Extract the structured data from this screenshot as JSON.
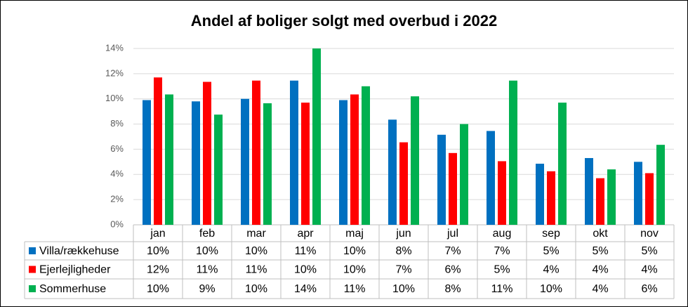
{
  "chart_data": {
    "type": "bar",
    "title": "Andel af boliger solgt med overbud i 2022",
    "categories": [
      "jan",
      "feb",
      "mar",
      "apr",
      "maj",
      "jun",
      "jul",
      "aug",
      "sep",
      "okt",
      "nov"
    ],
    "series": [
      {
        "name": "Villa/rækkehuse",
        "color": "#0070c0",
        "values": [
          9.9,
          9.8,
          10.0,
          11.45,
          9.9,
          8.35,
          7.15,
          7.45,
          4.85,
          5.3,
          5.0
        ],
        "value_labels": [
          "10%",
          "10%",
          "10%",
          "11%",
          "10%",
          "8%",
          "7%",
          "7%",
          "5%",
          "5%",
          "5%"
        ]
      },
      {
        "name": "Ejerlejligheder",
        "color": "#ff0000",
        "values": [
          11.7,
          11.35,
          11.45,
          9.7,
          10.35,
          6.55,
          5.7,
          5.05,
          4.25,
          3.7,
          4.1
        ],
        "value_labels": [
          "12%",
          "11%",
          "11%",
          "10%",
          "10%",
          "7%",
          "6%",
          "5%",
          "4%",
          "4%",
          "4%"
        ]
      },
      {
        "name": "Sommerhuse",
        "color": "#00b050",
        "values": [
          10.35,
          8.75,
          9.65,
          14.0,
          11.0,
          10.2,
          8.0,
          11.45,
          9.7,
          4.4,
          6.35
        ],
        "value_labels": [
          "10%",
          "9%",
          "10%",
          "14%",
          "11%",
          "10%",
          "8%",
          "11%",
          "10%",
          "4%",
          "6%"
        ]
      }
    ],
    "ylim": [
      0,
      14
    ],
    "yticks": [
      {
        "value": 0,
        "label": "0%"
      },
      {
        "value": 2,
        "label": "2%"
      },
      {
        "value": 4,
        "label": "4%"
      },
      {
        "value": 6,
        "label": "6%"
      },
      {
        "value": 8,
        "label": "8%"
      },
      {
        "value": 10,
        "label": "10%"
      },
      {
        "value": 12,
        "label": "12%"
      },
      {
        "value": 14,
        "label": "14%"
      }
    ],
    "grid": true
  }
}
